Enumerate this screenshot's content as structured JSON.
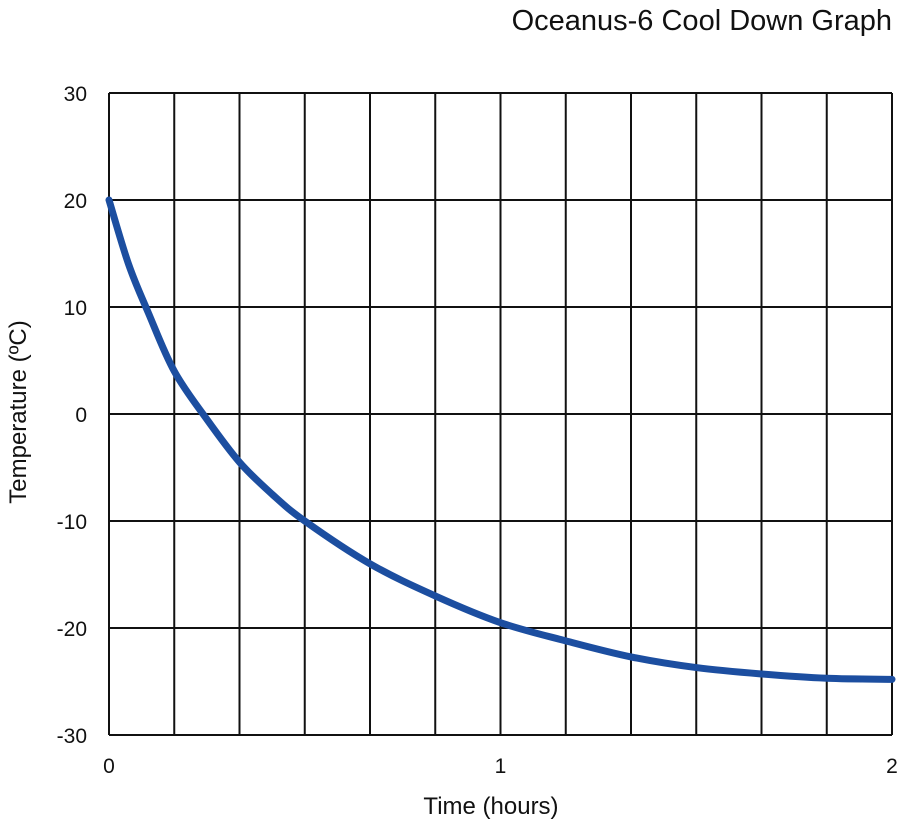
{
  "chart_data": {
    "type": "line",
    "title": "Oceanus-6 Cool Down Graph",
    "xlabel": "Time (hours)",
    "ylabel": "Temperature (ºC)",
    "xlim": [
      0,
      2
    ],
    "ylim": [
      -30,
      30
    ],
    "x_ticks": [
      "0",
      "1",
      "2"
    ],
    "y_ticks": [
      "30",
      "20",
      "10",
      "0",
      "-10",
      "-20",
      "-30"
    ],
    "grid": true,
    "x_grid_step": 0.1667,
    "y_grid_step": 10,
    "series": [
      {
        "color": "#1c4ea0",
        "x": [
          0,
          0.05,
          0.1,
          0.1667,
          0.25,
          0.3333,
          0.4167,
          0.5,
          0.6667,
          0.8333,
          1.0,
          1.1667,
          1.3333,
          1.5,
          1.6667,
          1.8333,
          2.0
        ],
        "y": [
          20,
          14,
          9.5,
          4,
          -0.5,
          -4.5,
          -7.5,
          -10,
          -14,
          -17,
          -19.5,
          -21.2,
          -22.7,
          -23.7,
          -24.3,
          -24.7,
          -24.8
        ]
      }
    ]
  }
}
